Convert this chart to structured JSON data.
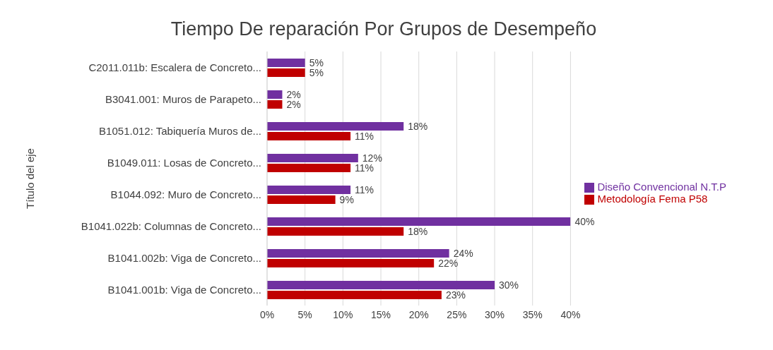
{
  "chart_data": {
    "type": "bar",
    "orientation": "horizontal",
    "title": "Tiempo De reparación Por Grupos de Desempeño",
    "ylabel": "Título del eje",
    "categories": [
      "C2011.011b: Escalera de Concreto...",
      "B3041.001: Muros de Parapeto...",
      "B1051.012: Tabiquería Muros de...",
      "B1049.011: Losas de Concreto...",
      "B1044.092: Muro de Concreto...",
      "B1041.022b: Columnas de Concreto...",
      "B1041.002b: Viga de Concreto...",
      "B1041.001b: Viga de Concreto..."
    ],
    "series": [
      {
        "name": "Diseño Convencional N.T.P",
        "color": "#7030a0",
        "values": [
          5,
          2,
          18,
          12,
          11,
          40,
          24,
          30
        ],
        "value_labels": [
          "5%",
          "2%",
          "18%",
          "12%",
          "11%",
          "40%",
          "24%",
          "30%"
        ]
      },
      {
        "name": "Metodología Fema P58",
        "color": "#c00000",
        "values": [
          5,
          2,
          11,
          11,
          9,
          18,
          22,
          23
        ],
        "value_labels": [
          "5%",
          "2%",
          "11%",
          "11%",
          "9%",
          "18%",
          "22%",
          "23%"
        ]
      }
    ],
    "xlim": [
      0,
      40
    ],
    "xticks": [
      {
        "value": 0,
        "label": "0%"
      },
      {
        "value": 5,
        "label": "5%"
      },
      {
        "value": 10,
        "label": "10%"
      },
      {
        "value": 15,
        "label": "15%"
      },
      {
        "value": 20,
        "label": "20%"
      },
      {
        "value": 25,
        "label": "25%"
      },
      {
        "value": 30,
        "label": "30%"
      },
      {
        "value": 35,
        "label": "35%"
      },
      {
        "value": 40,
        "label": "40%"
      }
    ],
    "grid": "x",
    "legend": "right"
  }
}
